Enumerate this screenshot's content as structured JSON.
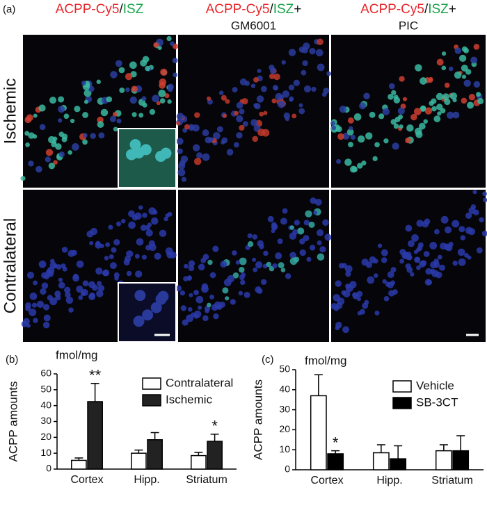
{
  "panel_a": {
    "label": "(a)",
    "columns": [
      {
        "parts": [
          {
            "text": "ACPP-Cy5",
            "color": "#e8262b"
          },
          {
            "text": "/",
            "color": "#111111"
          },
          {
            "text": "ISZ",
            "color": "#1aa34a"
          }
        ]
      },
      {
        "parts": [
          {
            "text": "ACPP-Cy5",
            "color": "#e8262b"
          },
          {
            "text": "/",
            "color": "#111111"
          },
          {
            "text": "ISZ",
            "color": "#1aa34a"
          },
          {
            "text": "+",
            "color": "#111111"
          }
        ],
        "line2": "GM6001"
      },
      {
        "parts": [
          {
            "text": "ACPP-Cy5",
            "color": "#e8262b"
          },
          {
            "text": "/",
            "color": "#111111"
          },
          {
            "text": "ISZ",
            "color": "#1aa34a"
          },
          {
            "text": "+",
            "color": "#111111"
          }
        ],
        "line2": "PIC"
      }
    ],
    "rows": [
      "Ischemic",
      "Contralateral"
    ]
  },
  "chart_data": [
    {
      "type": "bar",
      "panel_label": "(b)",
      "unit_label": "fmol/mg",
      "y_label": "ACPP amounts",
      "categories": [
        "Cortex",
        "Hipp.",
        "Striatum"
      ],
      "series": [
        {
          "name": "Contralateral",
          "color": "#ffffff",
          "values": [
            5.5,
            10,
            8.5
          ],
          "errors": [
            1.5,
            2,
            2
          ],
          "significance": [
            null,
            null,
            null
          ]
        },
        {
          "name": "Ischemic",
          "color": "#222222",
          "values": [
            42.5,
            18.5,
            17.5
          ],
          "errors": [
            11.5,
            4.5,
            4.5
          ],
          "significance": [
            "**",
            null,
            "*"
          ]
        }
      ],
      "ylim": [
        0,
        60
      ],
      "yticks": [
        0,
        10,
        20,
        30,
        40,
        50,
        60
      ],
      "legend": "top-right"
    },
    {
      "type": "bar",
      "panel_label": "(c)",
      "unit_label": "fmol/mg",
      "y_label": "ACPP amounts",
      "categories": [
        "Cortex",
        "Hipp.",
        "Striatum"
      ],
      "series": [
        {
          "name": "Vehicle",
          "color": "#ffffff",
          "values": [
            37,
            8.5,
            9.5
          ],
          "errors": [
            10.5,
            4,
            3
          ],
          "significance": [
            null,
            null,
            null
          ]
        },
        {
          "name": "SB-3CT",
          "color": "#000000",
          "values": [
            8,
            5.5,
            9.5
          ],
          "errors": [
            1.5,
            6.5,
            7.5
          ],
          "significance": [
            "*",
            null,
            null
          ]
        }
      ],
      "ylim": [
        0,
        50
      ],
      "yticks": [
        0,
        10,
        20,
        30,
        40,
        50
      ],
      "legend": "top-right"
    }
  ]
}
